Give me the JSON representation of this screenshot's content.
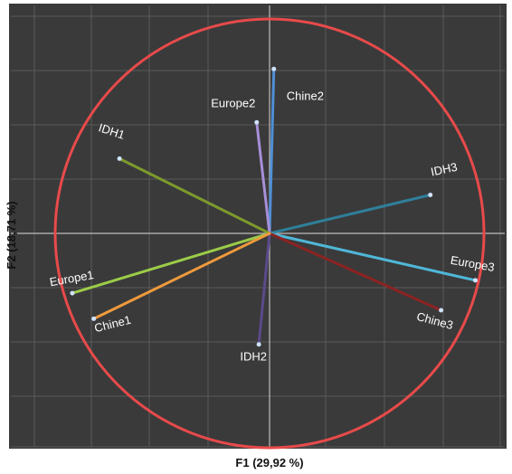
{
  "chart_data": {
    "type": "scatter",
    "subtype": "correlation-circle",
    "title": "",
    "xlabel": "F1 (29,92 %)",
    "ylabel": "F2 (18,71 %)",
    "xlim": [
      -1.25,
      1.25
    ],
    "ylim": [
      -1.05,
      1.05
    ],
    "grid": true,
    "legend": "none",
    "background_color": "#3a3a3a",
    "grid_color": "#5a5a5a",
    "axis_color": "#bdbdbd",
    "circle_color": "#e84a4a",
    "variables": [
      {
        "label": "Chine2",
        "x": 0.02,
        "y": 0.77,
        "color": "#4f8fd6"
      },
      {
        "label": "Europe2",
        "x": -0.06,
        "y": 0.52,
        "color": "#a78fd8"
      },
      {
        "label": "IDH1",
        "x": -0.7,
        "y": 0.35,
        "color": "#7d9a2c"
      },
      {
        "label": "IDH3",
        "x": 0.75,
        "y": 0.18,
        "color": "#2f7f9a"
      },
      {
        "label": "Europe3",
        "x": 0.96,
        "y": -0.22,
        "color": "#4fb7d8"
      },
      {
        "label": "Chine3",
        "x": 0.8,
        "y": -0.36,
        "color": "#8b2323"
      },
      {
        "label": "IDH2",
        "x": -0.05,
        "y": -0.52,
        "color": "#5a4a8a"
      },
      {
        "label": "Europe1",
        "x": -0.92,
        "y": -0.28,
        "color": "#9ccc48"
      },
      {
        "label": "Chine1",
        "x": -0.82,
        "y": -0.4,
        "color": "#ee9a3c"
      }
    ]
  }
}
